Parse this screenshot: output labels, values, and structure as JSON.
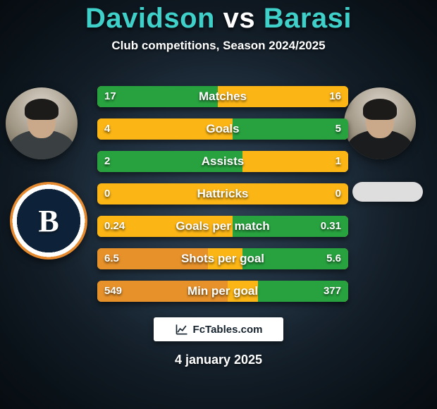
{
  "title": {
    "left": "Davidson",
    "vs": "vs",
    "right": "Barasi",
    "left_color": "#3fd0c9",
    "vs_color": "#ffffff",
    "right_color": "#3fd0c9",
    "fontsize": 40
  },
  "subtitle": "Club competitions, Season 2024/2025",
  "players": {
    "left": {
      "name": "Davidson",
      "shirt_color": "#3a3f42"
    },
    "right": {
      "name": "Barasi",
      "shirt_color": "#1b1c1e"
    }
  },
  "clubs": {
    "left": {
      "letter": "B",
      "ring_outer": "#e58a2f",
      "ring_inner": "#ffffff",
      "fill": "#0d2238"
    },
    "right": {
      "pill_color": "#dedede"
    }
  },
  "bar_style": {
    "height": 30,
    "gap": 16,
    "radius": 6,
    "label_fontsize": 17,
    "value_fontsize": 15,
    "text_color": "#ffffff",
    "colors": {
      "left_good": "#28a23f",
      "neutral": "#fbb515",
      "right_good": "#28a23f",
      "left_bad": "#e7912a",
      "right_bad": "#e7912a"
    }
  },
  "rows": [
    {
      "label": "Matches",
      "left_value": "17",
      "right_value": "16",
      "left_pct": 48,
      "right_pct": 40,
      "left_color": "#28a23f",
      "base_color": "#fbb515",
      "right_color": "#fbb515"
    },
    {
      "label": "Goals",
      "left_value": "4",
      "right_value": "5",
      "left_pct": 38,
      "right_pct": 46,
      "left_color": "#fbb515",
      "base_color": "#fbb515",
      "right_color": "#28a23f"
    },
    {
      "label": "Assists",
      "left_value": "2",
      "right_value": "1",
      "left_pct": 58,
      "right_pct": 22,
      "left_color": "#28a23f",
      "base_color": "#fbb515",
      "right_color": "#fbb515"
    },
    {
      "label": "Hattricks",
      "left_value": "0",
      "right_value": "0",
      "left_pct": 0,
      "right_pct": 0,
      "left_color": "#fbb515",
      "base_color": "#fbb515",
      "right_color": "#fbb515"
    },
    {
      "label": "Goals per match",
      "left_value": "0.24",
      "right_value": "0.31",
      "left_pct": 36,
      "right_pct": 46,
      "left_color": "#fbb515",
      "base_color": "#fbb515",
      "right_color": "#28a23f"
    },
    {
      "label": "Shots per goal",
      "left_value": "6.5",
      "right_value": "5.6",
      "left_pct": 44,
      "right_pct": 42,
      "left_color": "#e7912a",
      "base_color": "#fbb515",
      "right_color": "#28a23f"
    },
    {
      "label": "Min per goal",
      "left_value": "549",
      "right_value": "377",
      "left_pct": 52,
      "right_pct": 36,
      "left_color": "#e7912a",
      "base_color": "#fbb515",
      "right_color": "#28a23f"
    }
  ],
  "brand": "FcTables.com",
  "date": "4 january 2025",
  "background": {
    "center": "#2f4356",
    "edge": "#0e1a24"
  }
}
